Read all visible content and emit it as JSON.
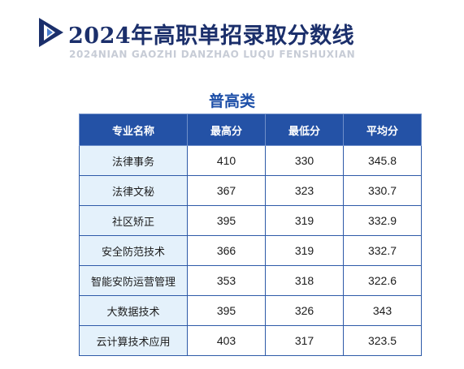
{
  "header": {
    "title": "2024年高职单招录取分数线",
    "subtitle": "2024NIAN GAOZHI DANZHAO LUQU FENSHUXIAN",
    "accent_color": "#1d4fa8"
  },
  "category": "普高类",
  "table": {
    "columns": [
      "专业名称",
      "最高分",
      "最低分",
      "平均分"
    ],
    "rows": [
      {
        "name": "法律事务",
        "max": "410",
        "min": "330",
        "avg": "345.8"
      },
      {
        "name": "法律文秘",
        "max": "367",
        "min": "323",
        "avg": "330.7"
      },
      {
        "name": "社区矫正",
        "max": "395",
        "min": "319",
        "avg": "332.9"
      },
      {
        "name": "安全防范技术",
        "max": "366",
        "min": "319",
        "avg": "332.7"
      },
      {
        "name": "智能安防运营管理",
        "max": "353",
        "min": "318",
        "avg": "322.6"
      },
      {
        "name": "大数据技术",
        "max": "395",
        "min": "326",
        "avg": "343"
      },
      {
        "name": "云计算技术应用",
        "max": "403",
        "min": "317",
        "avg": "323.5"
      }
    ]
  }
}
